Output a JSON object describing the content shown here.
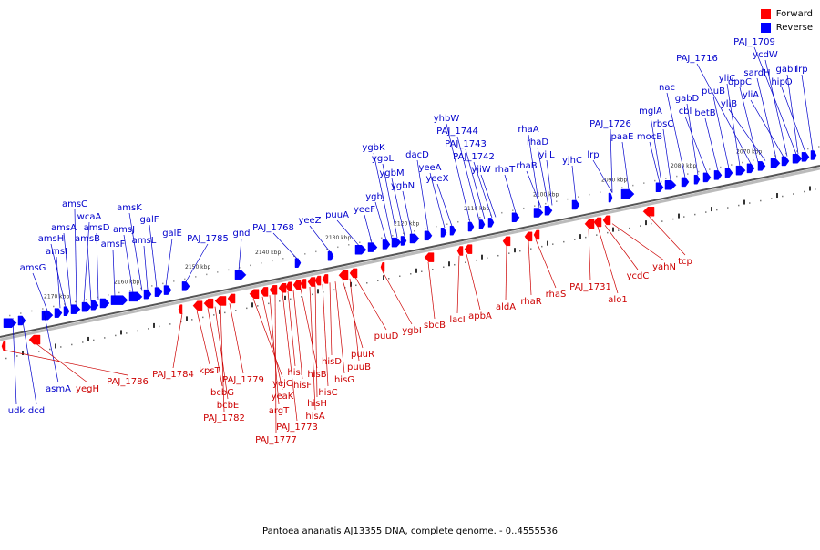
{
  "caption": "Pantoea ananatis AJ13355 DNA, complete genome. - 0..4555536",
  "legend": [
    {
      "label": "Forward",
      "color": "#ff0000"
    },
    {
      "label": "Reverse",
      "color": "#0000ff"
    }
  ],
  "colors": {
    "forward": "#ff0000",
    "reverse": "#0000ff",
    "label_forward": "#cc0000",
    "label_reverse": "#0000cc",
    "axis": "#555555"
  },
  "scale_marks": [
    "2170 kbp",
    "2160 kbp",
    "2150 kbp",
    "2140 kbp",
    "2130 kbp",
    "2120 kbp",
    "2110 kbp",
    "2100 kbp",
    "2090 kbp",
    "2080 kbp",
    "2070 kbp"
  ],
  "reverse_labels": [
    "udk",
    "dcd",
    "asmA",
    "amsG",
    "amsI",
    "amsH",
    "amsA",
    "amsC",
    "wcaA",
    "amsB",
    "amsD",
    "amsF",
    "amsJ",
    "amsK",
    "amsL",
    "galF",
    "galE",
    "PAJ_1785",
    "gnd",
    "PAJ_1768",
    "yeeZ",
    "puuA",
    "yeeF",
    "ygbJ",
    "ygbK",
    "ygbL",
    "ygbM",
    "ygbN",
    "dacD",
    "yeeA",
    "yeeX",
    "yhbW",
    "PAJ_1744",
    "PAJ_1743",
    "PAJ_1742",
    "yjiW",
    "rhaT",
    "rhaA",
    "rhaD",
    "yiiL",
    "rhaB",
    "yjhC",
    "PAJ_1726",
    "lrp",
    "paaE",
    "mglA",
    "rbsC",
    "nac",
    "mocB",
    "gabD",
    "cbl",
    "betB",
    "puuB",
    "yliC",
    "PAJ_1716",
    "dppC",
    "yliB",
    "sardH",
    "yliA",
    "ycdW",
    "PAJ_1709",
    "gabT",
    "hipO",
    "lrp"
  ],
  "forward_labels": [
    "yegH",
    "PAJ_1786",
    "PAJ_1784",
    "kpsT",
    "bcbG",
    "bcbE",
    "PAJ_1782",
    "PAJ_1779",
    "yejC",
    "yeaK",
    "argT",
    "PAJ_1777",
    "PAJ_1773",
    "hisI",
    "hisF",
    "hisB",
    "hisA",
    "hisH",
    "hisC",
    "hisD",
    "hisG",
    "puuR",
    "puuB",
    "puuD",
    "ygbI",
    "sbcB",
    "lacI",
    "apbA",
    "aldA",
    "rhaR",
    "rhaS",
    "PAJ_1731",
    "alo1",
    "ycdC",
    "yahN",
    "tcp"
  ]
}
